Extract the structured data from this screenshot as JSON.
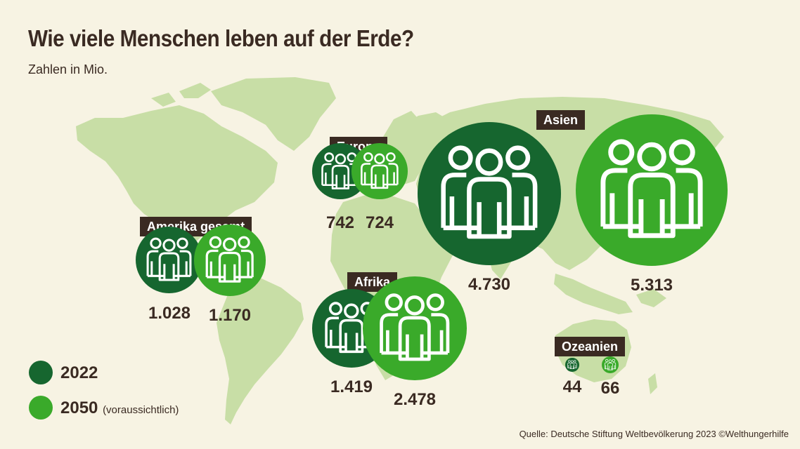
{
  "header": {
    "title": "Wie viele Menschen leben auf der Erde?",
    "subtitle": "Zahlen in Mio."
  },
  "colors": {
    "background": "#f7f3e3",
    "map": "#c8dea6",
    "year_2022": "#16662f",
    "year_2050": "#3aaa2a",
    "label_bg": "#3a2a22",
    "text": "#3a2a22"
  },
  "icons": {
    "bubble_icon": "group-of-people-icon"
  },
  "chart_data": {
    "type": "bubble",
    "title": "Wie viele Menschen leben auf der Erde?",
    "subtitle": "Zahlen in Mio.",
    "unit": "Mio.",
    "series": [
      {
        "name": "2022",
        "color": "#16662f"
      },
      {
        "name": "2050",
        "color": "#3aaa2a"
      }
    ],
    "regions": [
      {
        "name": "Amerika gesamt",
        "values": {
          "2022": 1028,
          "2050": 1170
        },
        "labels": {
          "2022": "1.028",
          "2050": "1.170"
        }
      },
      {
        "name": "Europa",
        "values": {
          "2022": 742,
          "2050": 724
        },
        "labels": {
          "2022": "742",
          "2050": "724"
        }
      },
      {
        "name": "Afrika",
        "values": {
          "2022": 1419,
          "2050": 2478
        },
        "labels": {
          "2022": "1.419",
          "2050": "2.478"
        }
      },
      {
        "name": "Asien",
        "values": {
          "2022": 4730,
          "2050": 5313
        },
        "labels": {
          "2022": "4.730",
          "2050": "5.313"
        }
      },
      {
        "name": "Ozeanien",
        "values": {
          "2022": 44,
          "2050": 66
        },
        "labels": {
          "2022": "44",
          "2050": "66"
        }
      }
    ]
  },
  "legend": {
    "items": [
      {
        "label": "2022",
        "note": ""
      },
      {
        "label": "2050",
        "note": "(voraussichtlich)"
      }
    ]
  },
  "footer": {
    "source": "Quelle: Deutsche Stiftung Weltbevölkerung 2023 ©Welthungerhilfe"
  }
}
